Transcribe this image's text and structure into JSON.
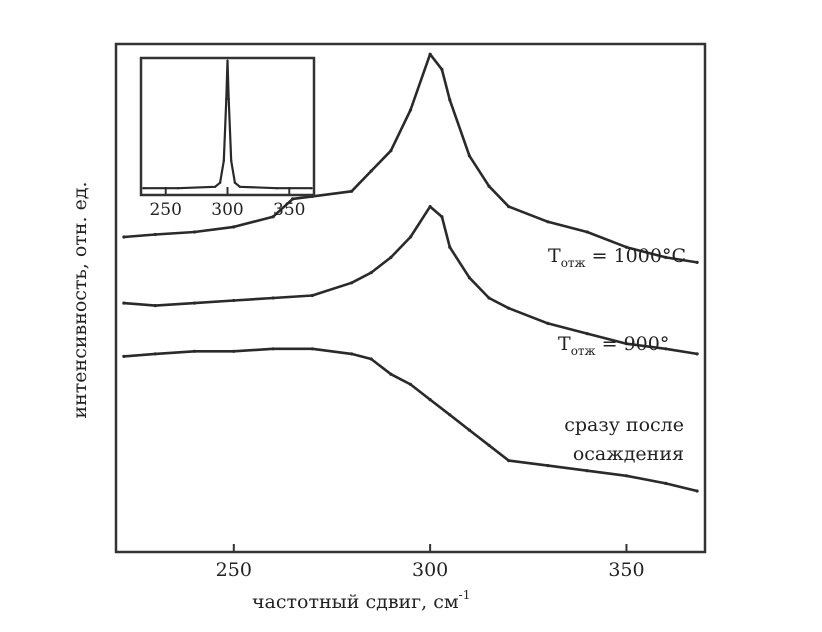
{
  "chart_data": [
    {
      "type": "line",
      "title": "",
      "xlabel": "частотный сдвиг, см",
      "xlabel_sup": "-1",
      "ylabel": "интенсивность, отн. ед.",
      "xlim": [
        220,
        370
      ],
      "ylim": [
        0,
        10
      ],
      "x_ticks": [
        250,
        300,
        350
      ],
      "x_tick_labels": [
        "250",
        "300",
        "350"
      ],
      "grid": false,
      "series": [
        {
          "annotation": "T_{отж} = 1000°C",
          "annotation_main": "T",
          "annotation_sub": "отж",
          "annotation_rest": " = 1000°C",
          "x": [
            222,
            230,
            240,
            250,
            260,
            265,
            270,
            280,
            285,
            290,
            295,
            300,
            303,
            305,
            310,
            315,
            320,
            330,
            340,
            350,
            360,
            368
          ],
          "y": [
            6.2,
            6.25,
            6.3,
            6.4,
            6.6,
            6.95,
            7.0,
            7.1,
            7.5,
            7.9,
            8.7,
            9.8,
            9.5,
            8.9,
            7.8,
            7.2,
            6.8,
            6.5,
            6.3,
            6.0,
            5.8,
            5.7
          ]
        },
        {
          "annotation": "T_{отж} = 900°",
          "annotation_main": "T",
          "annotation_sub": "отж",
          "annotation_rest": " = 900°",
          "x": [
            222,
            230,
            240,
            250,
            260,
            270,
            280,
            285,
            290,
            295,
            300,
            303,
            305,
            310,
            315,
            320,
            330,
            340,
            350,
            360,
            368
          ],
          "y": [
            4.9,
            4.85,
            4.9,
            4.95,
            5.0,
            5.05,
            5.3,
            5.5,
            5.8,
            6.2,
            6.8,
            6.6,
            6.0,
            5.4,
            5.0,
            4.8,
            4.5,
            4.3,
            4.1,
            4.0,
            3.9
          ]
        },
        {
          "annotation": "сразу после осаждения",
          "annotation_lines": [
            "сразу после",
            "осаждения"
          ],
          "x": [
            222,
            230,
            240,
            250,
            260,
            270,
            280,
            285,
            290,
            295,
            300,
            305,
            310,
            315,
            320,
            330,
            340,
            350,
            360,
            368
          ],
          "y": [
            3.85,
            3.9,
            3.95,
            3.95,
            4.0,
            4.0,
            3.9,
            3.8,
            3.5,
            3.3,
            3.0,
            2.7,
            2.4,
            2.1,
            1.8,
            1.7,
            1.6,
            1.5,
            1.35,
            1.2
          ]
        }
      ]
    },
    {
      "type": "line",
      "inset": true,
      "xlim": [
        230,
        370
      ],
      "ylim": [
        0,
        1
      ],
      "x_ticks": [
        250,
        300,
        350
      ],
      "x_tick_labels": [
        "250",
        "300",
        "350"
      ],
      "series": [
        {
          "x": [
            232,
            260,
            290,
            294,
            297,
            299,
            300,
            301,
            303,
            306,
            310,
            340,
            368
          ],
          "y": [
            0.05,
            0.05,
            0.06,
            0.09,
            0.25,
            0.7,
            0.98,
            0.7,
            0.25,
            0.09,
            0.06,
            0.05,
            0.05
          ]
        }
      ]
    }
  ]
}
